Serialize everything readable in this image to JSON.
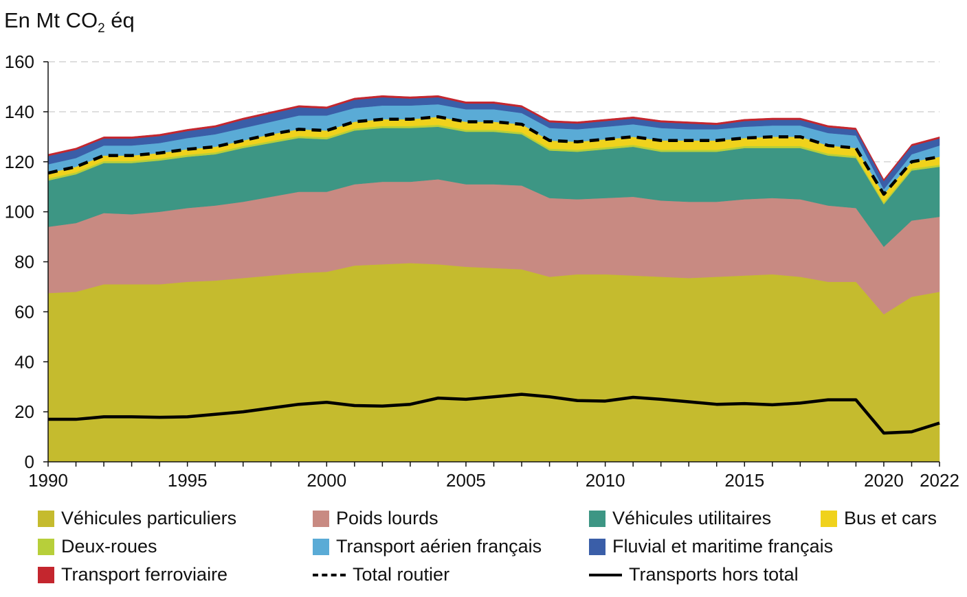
{
  "chart_data": {
    "type": "area",
    "stacked": true,
    "title": "En Mt CO₂ éq",
    "title_main": "En Mt CO",
    "title_sub": "2",
    "title_end": " éq",
    "xlabel": "",
    "ylabel": "",
    "xlim": [
      1990,
      2022
    ],
    "ylim": [
      0,
      160
    ],
    "yticks": [
      0,
      20,
      40,
      60,
      80,
      100,
      120,
      140,
      160
    ],
    "xtick_labels": [
      "1990",
      "1995",
      "2000",
      "2005",
      "2010",
      "2015",
      "2020",
      "2022"
    ],
    "xticks": [
      1990,
      1995,
      2000,
      2005,
      2010,
      2015,
      2020,
      2022
    ],
    "grid": "horizontal dashed",
    "legend_position": "bottom",
    "x": [
      1990,
      1991,
      1992,
      1993,
      1994,
      1995,
      1996,
      1997,
      1998,
      1999,
      2000,
      2001,
      2002,
      2003,
      2004,
      2005,
      2006,
      2007,
      2008,
      2009,
      2010,
      2011,
      2012,
      2013,
      2014,
      2015,
      2016,
      2017,
      2018,
      2019,
      2020,
      2021,
      2022
    ],
    "series": [
      {
        "name": "Véhicules particuliers",
        "color": "#c5bb2e",
        "values": [
          67.5,
          68,
          71,
          71,
          71,
          72,
          72.5,
          73.5,
          74.5,
          75.5,
          76,
          78.5,
          79,
          79.5,
          79,
          78,
          77.5,
          77,
          74,
          75,
          75,
          74.5,
          74,
          73.5,
          74,
          74.5,
          75,
          74,
          72,
          72,
          59,
          66,
          68
        ]
      },
      {
        "name": "Poids lourds",
        "color": "#c88a82",
        "values": [
          26.5,
          27.5,
          28.5,
          28,
          29,
          29.5,
          30,
          30.5,
          31.5,
          32.5,
          32,
          32.5,
          33,
          32.5,
          34,
          33,
          33.5,
          33.5,
          31.5,
          30,
          30.5,
          31.5,
          30.5,
          30.5,
          30,
          30.5,
          30.5,
          31,
          30.5,
          29.5,
          27,
          30.5,
          30
        ]
      },
      {
        "name": "Véhicules utilitaires",
        "color": "#3d9684",
        "values": [
          18.5,
          19.5,
          20,
          20.5,
          20.5,
          20.5,
          20.5,
          21.5,
          21.5,
          21.5,
          21,
          21.5,
          21.5,
          21.5,
          21,
          21,
          21,
          20.5,
          19,
          19,
          19.5,
          20,
          19.5,
          20,
          20,
          20.5,
          20,
          20.5,
          20,
          20,
          17,
          20,
          20
        ]
      },
      {
        "name": "Deux-roues",
        "color": "#b7cf3a",
        "values": [
          0.8,
          0.8,
          0.8,
          0.8,
          0.8,
          0.8,
          0.8,
          0.8,
          0.8,
          0.8,
          0.8,
          0.8,
          0.8,
          0.8,
          0.8,
          0.8,
          0.8,
          0.8,
          0.8,
          0.8,
          0.8,
          0.8,
          0.8,
          0.8,
          0.8,
          0.8,
          0.8,
          0.8,
          0.8,
          0.8,
          0.8,
          0.8,
          0.8
        ]
      },
      {
        "name": "Bus et cars",
        "color": "#f0d21c",
        "values": [
          2.2,
          2.2,
          2.2,
          2.2,
          2.2,
          2.2,
          2.2,
          2.2,
          2.7,
          2.7,
          2.7,
          2.7,
          2.7,
          2.7,
          3.2,
          3.2,
          3.2,
          3.2,
          3.2,
          3.2,
          3.2,
          3.2,
          3.7,
          3.7,
          3.7,
          3.2,
          3.7,
          3.7,
          3.2,
          3.2,
          3.2,
          2.7,
          3.2
        ]
      },
      {
        "name": "Transport aérien français",
        "color": "#5aabd6",
        "values": [
          3.5,
          3.5,
          4,
          4,
          4,
          4.5,
          5,
          5,
          5,
          5.5,
          6,
          5.5,
          5.5,
          5.5,
          5,
          5,
          5,
          4.5,
          5,
          5,
          5,
          5,
          5,
          4.5,
          4.5,
          4.5,
          4.5,
          4.5,
          5,
          5,
          2,
          3,
          4.5
        ]
      },
      {
        "name": "Fluvial et maritime français",
        "color": "#3a5ea8",
        "values": [
          3.3,
          3.3,
          2.8,
          2.8,
          2.8,
          2.8,
          2.8,
          3.3,
          3.3,
          3.3,
          2.8,
          3.3,
          3.3,
          2.8,
          2.8,
          2.3,
          2.3,
          2.3,
          2.3,
          2.3,
          2.3,
          2.3,
          2.3,
          2.3,
          1.8,
          2.3,
          2.3,
          2.3,
          2.3,
          2.3,
          3.3,
          3.3,
          2.8
        ]
      },
      {
        "name": "Transport ferroviaire",
        "color": "#c4262e",
        "values": [
          0.7,
          0.7,
          0.7,
          0.7,
          0.7,
          0.7,
          0.7,
          0.7,
          0.7,
          0.7,
          0.7,
          0.7,
          0.7,
          0.7,
          0.7,
          0.7,
          0.7,
          0.7,
          0.7,
          0.7,
          0.7,
          0.7,
          0.7,
          0.7,
          0.7,
          0.7,
          0.7,
          0.7,
          0.7,
          0.7,
          0.7,
          0.7,
          0.7
        ]
      }
    ],
    "lines": [
      {
        "name": "Total routier",
        "style": "dashed",
        "color": "#000000",
        "values": [
          115.5,
          118,
          122.5,
          122.5,
          123.5,
          125,
          126,
          128.5,
          131,
          133,
          132.5,
          136,
          137,
          137,
          138,
          136,
          136,
          135,
          128.5,
          128,
          129,
          130,
          128.5,
          128.5,
          128.5,
          129.5,
          130,
          130,
          126.5,
          125.5,
          107,
          120,
          122
        ]
      },
      {
        "name": "Transports hors total",
        "style": "solid",
        "color": "#000000",
        "values": [
          17,
          17,
          18,
          18,
          17.8,
          18,
          19,
          20,
          21.5,
          23,
          23.8,
          22.5,
          22.3,
          23,
          25.5,
          25,
          26,
          27,
          26,
          24.5,
          24.3,
          25.8,
          25,
          24,
          23,
          23.3,
          22.8,
          23.5,
          24.8,
          24.8,
          11.5,
          12,
          15.5
        ]
      }
    ]
  },
  "legend": {
    "items": [
      {
        "label": "Véhicules particuliers",
        "kind": "swatch",
        "color": "#c5bb2e"
      },
      {
        "label": "Poids lourds",
        "kind": "swatch",
        "color": "#c88a82"
      },
      {
        "label": "Véhicules utilitaires",
        "kind": "swatch",
        "color": "#3d9684"
      },
      {
        "label": "Bus et cars",
        "kind": "swatch",
        "color": "#f0d21c"
      },
      {
        "label": "Deux-roues",
        "kind": "swatch",
        "color": "#b7cf3a"
      },
      {
        "label": "Transport aérien français",
        "kind": "swatch",
        "color": "#5aabd6"
      },
      {
        "label": "Fluvial et maritime français",
        "kind": "swatch",
        "color": "#3a5ea8"
      },
      {
        "label": "Transport ferroviaire",
        "kind": "swatch",
        "color": "#c4262e"
      },
      {
        "label": "Total routier",
        "kind": "dashed-line",
        "color": "#000000"
      },
      {
        "label": "Transports hors total",
        "kind": "solid-line",
        "color": "#000000"
      }
    ]
  }
}
